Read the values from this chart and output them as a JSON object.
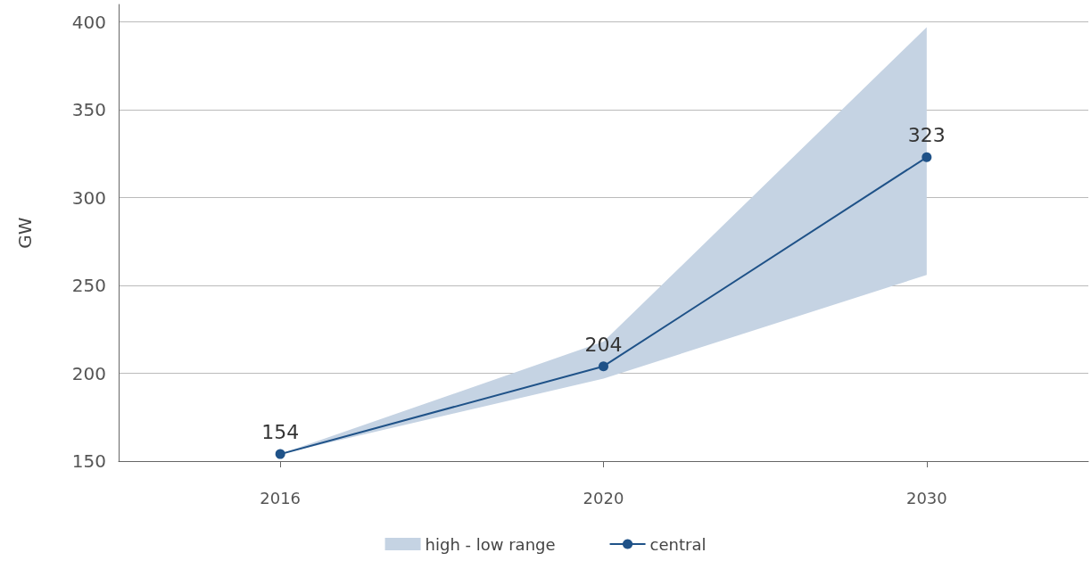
{
  "chart_data": {
    "type": "line",
    "ylabel": "GW",
    "categories": [
      "2016",
      "2020",
      "2030"
    ],
    "series": [
      {
        "name": "high - low range",
        "type": "area",
        "color": "#c5d3e3",
        "values": [
          null,
          null,
          null
        ],
        "lower": [
          154,
          197,
          256
        ],
        "upper": [
          154,
          218,
          397
        ]
      },
      {
        "name": "central",
        "color": "#1f5288",
        "values": [
          154,
          204,
          323
        ]
      }
    ],
    "ylim": [
      150,
      410
    ],
    "yticks": [
      150,
      200,
      250,
      300,
      350,
      400
    ],
    "grid": "y",
    "legend": "bottom",
    "marker": "circle",
    "data_labels": true
  }
}
